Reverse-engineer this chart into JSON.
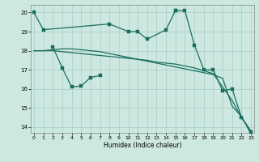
{
  "bg_color": "#cde8e0",
  "grid_color": "#a8ccc4",
  "line_color": "#1a6e60",
  "xlabel": "Humidex (Indice chaleur)",
  "xlim": [
    -0.3,
    23.3
  ],
  "ylim": [
    13.7,
    20.4
  ],
  "yticks": [
    14,
    15,
    16,
    17,
    18,
    19,
    20
  ],
  "xticks": [
    0,
    1,
    2,
    3,
    4,
    5,
    6,
    7,
    8,
    9,
    10,
    11,
    12,
    13,
    14,
    15,
    16,
    17,
    18,
    19,
    20,
    21,
    22,
    23
  ],
  "s1_x": [
    0,
    1,
    8,
    10,
    11,
    12,
    14,
    15
  ],
  "s1_y": [
    20.0,
    19.1,
    19.4,
    19.0,
    19.0,
    18.6,
    19.1,
    20.1
  ],
  "s2_x": [
    0,
    1,
    2,
    3,
    4,
    5,
    6,
    7,
    8,
    9,
    10,
    11,
    12,
    13,
    14,
    15,
    16,
    17,
    18,
    19,
    20,
    21,
    22,
    23
  ],
  "s2_y": [
    18.0,
    18.0,
    18.0,
    17.95,
    17.9,
    17.85,
    17.8,
    17.75,
    17.7,
    17.65,
    17.6,
    17.55,
    17.5,
    17.4,
    17.35,
    17.3,
    17.2,
    17.1,
    16.95,
    16.8,
    16.1,
    15.4,
    14.5,
    13.8
  ],
  "s3_x": [
    0,
    1,
    2,
    3,
    4,
    5,
    6,
    7,
    8,
    9,
    10,
    11,
    12,
    13,
    14,
    15,
    16,
    17,
    18,
    19,
    20,
    21,
    22,
    23
  ],
  "s3_y": [
    18.0,
    18.0,
    18.05,
    18.1,
    18.1,
    18.05,
    18.0,
    17.95,
    17.85,
    17.75,
    17.65,
    17.55,
    17.45,
    17.35,
    17.25,
    17.15,
    17.05,
    16.95,
    16.85,
    16.75,
    16.55,
    15.1,
    14.55,
    13.65
  ],
  "s4_x": [
    2,
    3,
    4,
    5,
    6,
    7
  ],
  "s4_y": [
    18.2,
    17.1,
    16.1,
    16.15,
    16.6,
    16.7
  ],
  "s5_x": [
    15,
    16,
    17,
    18,
    19,
    20,
    21,
    22,
    23
  ],
  "s5_y": [
    20.1,
    20.1,
    18.3,
    17.0,
    17.0,
    15.9,
    16.0,
    14.5,
    13.75
  ]
}
